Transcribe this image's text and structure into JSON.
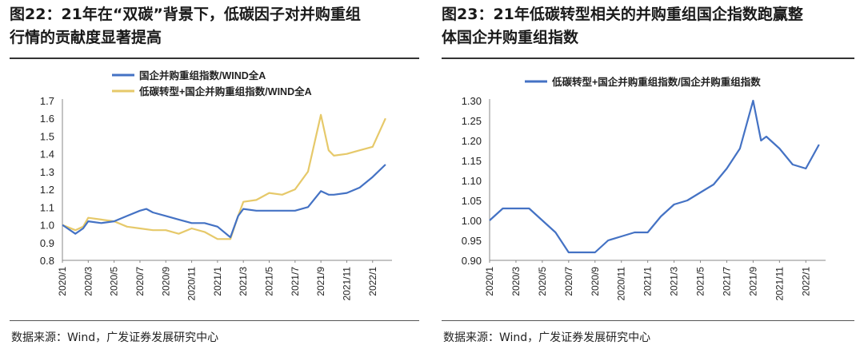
{
  "footer_source": "数据来源：Wind，广发证券发展研究中心",
  "panels": [
    {
      "title_line1": "图22：21年在“双碳”背景下，低碳因子对并购重组",
      "title_line2": "行情的贡献度显著提高"
    },
    {
      "title_line1": "图23：21年低碳转型相关的并购重组国企指数跑赢整",
      "title_line2": "体国企并购重组指数"
    }
  ],
  "chart_data": [
    {
      "type": "line",
      "ylim": [
        0.8,
        1.7
      ],
      "yticks": [
        "0.8",
        "0.9",
        "1.0",
        "1.1",
        "1.2",
        "1.3",
        "1.4",
        "1.5",
        "1.6",
        "1.7"
      ],
      "xticks": [
        "2020/1",
        "2020/3",
        "2020/5",
        "2020/7",
        "2020/9",
        "2020/11",
        "2021/1",
        "2021/3",
        "2021/5",
        "2021/7",
        "2021/9",
        "2021/11",
        "2022/1"
      ],
      "legend_position": "top-center",
      "series": [
        {
          "name": "国企并购重组指数/WIND全A",
          "color": "#4472C4",
          "points": [
            [
              "2020/1",
              1.0
            ],
            [
              "2020/2",
              0.95
            ],
            [
              "2020/2.6",
              0.98
            ],
            [
              "2020/3",
              1.02
            ],
            [
              "2020/4",
              1.01
            ],
            [
              "2020/5",
              1.02
            ],
            [
              "2020/6",
              1.05
            ],
            [
              "2020/7",
              1.08
            ],
            [
              "2020/7.5",
              1.09
            ],
            [
              "2020/8",
              1.07
            ],
            [
              "2020/9",
              1.05
            ],
            [
              "2020/10",
              1.03
            ],
            [
              "2020/11",
              1.01
            ],
            [
              "2020/12",
              1.01
            ],
            [
              "2021/1",
              0.99
            ],
            [
              "2021/2",
              0.93
            ],
            [
              "2021/2.6",
              1.05
            ],
            [
              "2021/3",
              1.09
            ],
            [
              "2021/4",
              1.08
            ],
            [
              "2021/5",
              1.08
            ],
            [
              "2021/6",
              1.08
            ],
            [
              "2021/7",
              1.08
            ],
            [
              "2021/8",
              1.1
            ],
            [
              "2021/9",
              1.19
            ],
            [
              "2021/9.6",
              1.17
            ],
            [
              "2021/10",
              1.17
            ],
            [
              "2021/11",
              1.18
            ],
            [
              "2021/12",
              1.21
            ],
            [
              "2022/1",
              1.27
            ],
            [
              "2022/2",
              1.34
            ]
          ]
        },
        {
          "name": "低碳转型+国企并购重组指数/WIND全A",
          "color": "#E6C96A",
          "points": [
            [
              "2020/1",
              1.0
            ],
            [
              "2020/2",
              0.97
            ],
            [
              "2020/2.6",
              0.99
            ],
            [
              "2020/3",
              1.04
            ],
            [
              "2020/4",
              1.03
            ],
            [
              "2020/5",
              1.02
            ],
            [
              "2020/6",
              0.99
            ],
            [
              "2020/7",
              0.98
            ],
            [
              "2020/8",
              0.97
            ],
            [
              "2020/9",
              0.97
            ],
            [
              "2020/10",
              0.95
            ],
            [
              "2020/11",
              0.98
            ],
            [
              "2020/12",
              0.96
            ],
            [
              "2021/1",
              0.92
            ],
            [
              "2021/2",
              0.92
            ],
            [
              "2021/2.6",
              1.05
            ],
            [
              "2021/3",
              1.13
            ],
            [
              "2021/4",
              1.14
            ],
            [
              "2021/5",
              1.18
            ],
            [
              "2021/6",
              1.17
            ],
            [
              "2021/7",
              1.2
            ],
            [
              "2021/8",
              1.3
            ],
            [
              "2021/9",
              1.62
            ],
            [
              "2021/9.6",
              1.42
            ],
            [
              "2021/10",
              1.39
            ],
            [
              "2021/11",
              1.4
            ],
            [
              "2021/12",
              1.42
            ],
            [
              "2022/1",
              1.44
            ],
            [
              "2022/2",
              1.6
            ]
          ]
        }
      ]
    },
    {
      "type": "line",
      "ylim": [
        0.9,
        1.3
      ],
      "yticks": [
        "0.90",
        "0.95",
        "1.00",
        "1.05",
        "1.10",
        "1.15",
        "1.20",
        "1.25",
        "1.30"
      ],
      "xticks": [
        "2020/1",
        "2020/3",
        "2020/5",
        "2020/7",
        "2020/9",
        "2020/11",
        "2021/1",
        "2021/3",
        "2021/5",
        "2021/7",
        "2021/9",
        "2021/11",
        "2022/1"
      ],
      "legend_position": "top-left",
      "series": [
        {
          "name": "低碳转型+国企并购重组指数/国企并购重组指数",
          "color": "#4472C4",
          "points": [
            [
              "2020/1",
              1.0
            ],
            [
              "2020/2",
              1.03
            ],
            [
              "2020/3",
              1.03
            ],
            [
              "2020/4",
              1.03
            ],
            [
              "2020/5",
              1.0
            ],
            [
              "2020/6",
              0.97
            ],
            [
              "2020/7",
              0.92
            ],
            [
              "2020/8",
              0.92
            ],
            [
              "2020/9",
              0.92
            ],
            [
              "2020/10",
              0.95
            ],
            [
              "2020/11",
              0.96
            ],
            [
              "2020/12",
              0.97
            ],
            [
              "2021/1",
              0.97
            ],
            [
              "2021/2",
              1.01
            ],
            [
              "2021/3",
              1.04
            ],
            [
              "2021/4",
              1.05
            ],
            [
              "2021/5",
              1.07
            ],
            [
              "2021/6",
              1.09
            ],
            [
              "2021/7",
              1.13
            ],
            [
              "2021/8",
              1.18
            ],
            [
              "2021/9",
              1.3
            ],
            [
              "2021/9.6",
              1.2
            ],
            [
              "2021/10",
              1.21
            ],
            [
              "2021/11",
              1.18
            ],
            [
              "2021/12",
              1.14
            ],
            [
              "2022/1",
              1.13
            ],
            [
              "2022/2",
              1.19
            ]
          ]
        }
      ]
    }
  ]
}
